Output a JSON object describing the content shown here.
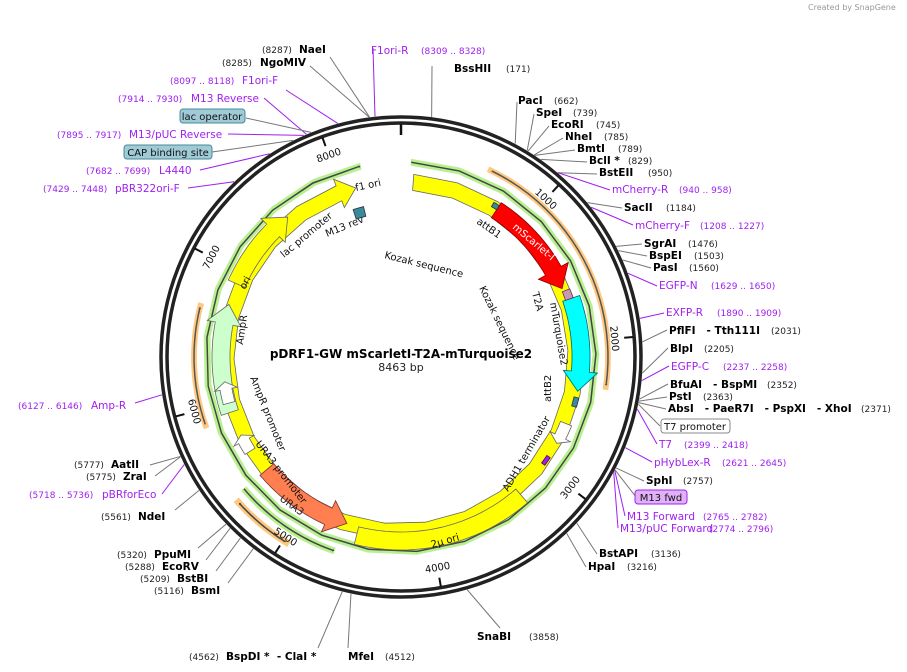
{
  "credit": "Created by SnapGene",
  "plasmid": {
    "name": "pDRF1-GW mScarletI-T2A-mTurquoise2",
    "length": "8463 bp",
    "total_bp": 8463
  },
  "ticks": [
    "1000",
    "2000",
    "3000",
    "4000",
    "5000",
    "6000",
    "7000",
    "8000"
  ],
  "colors": {
    "enzyme": "#000000",
    "primer": "#a020f0",
    "yellow": "#ffff00",
    "red": "#ff0000",
    "cyan": "#00ffff",
    "orange_feature": "#ff7f50",
    "ampr": "#ccffcc",
    "orange_arc": "#ffc880",
    "green_arc": "#a8f080"
  },
  "enzymes": [
    {
      "name": "NaeI",
      "pos": "(8287)"
    },
    {
      "name": "NgoMIV",
      "pos": "(8285)"
    },
    {
      "name": "BssHII",
      "pos": "(171)"
    },
    {
      "name": "PacI",
      "pos": "(662)"
    },
    {
      "name": "SpeI",
      "pos": "(739)"
    },
    {
      "name": "EcoRI",
      "pos": "(745)"
    },
    {
      "name": "NheI",
      "pos": "(785)"
    },
    {
      "name": "BmtI",
      "pos": "(789)"
    },
    {
      "name": "BclI *",
      "pos": "(829)"
    },
    {
      "name": "BstEII",
      "pos": "(950)"
    },
    {
      "name": "SacII",
      "pos": "(1184)"
    },
    {
      "name": "SgrAI",
      "pos": "(1476)"
    },
    {
      "name": "BspEI",
      "pos": "(1503)"
    },
    {
      "name": "PasI",
      "pos": "(1560)"
    },
    {
      "name": "PflFI   - Tth111I",
      "pos": "(2031)"
    },
    {
      "name": "BlpI",
      "pos": "(2205)"
    },
    {
      "name": "BfuAI   - BspMI",
      "pos": "(2352)"
    },
    {
      "name": "PstI",
      "pos": "(2363)"
    },
    {
      "name": "AbsI   - PaeR7I   - PspXI   - XhoI",
      "pos": "(2371)"
    },
    {
      "name": "SphI",
      "pos": "(2757)"
    },
    {
      "name": "BstAPI",
      "pos": "(3136)"
    },
    {
      "name": "HpaI",
      "pos": "(3216)"
    },
    {
      "name": "SnaBI",
      "pos": "(3858)"
    },
    {
      "name": "MfeI",
      "pos": "(4512)"
    },
    {
      "name": "BspDI *  - ClaI *",
      "pos": "(4562)"
    },
    {
      "name": "BsmI",
      "pos": "(5116)"
    },
    {
      "name": "BstBI",
      "pos": "(5209)"
    },
    {
      "name": "EcoRV",
      "pos": "(5288)"
    },
    {
      "name": "PpuMI",
      "pos": "(5320)"
    },
    {
      "name": "NdeI",
      "pos": "(5561)"
    },
    {
      "name": "ZraI",
      "pos": "(5775)"
    },
    {
      "name": "AatII",
      "pos": "(5777)"
    }
  ],
  "primers": [
    {
      "name": "F1ori-R",
      "range": "(8309 .. 8328)"
    },
    {
      "name": "F1ori-F",
      "range": "(8097 .. 8118)"
    },
    {
      "name": "M13 Reverse",
      "range": "(7914 .. 7930)"
    },
    {
      "name": "M13/pUC Reverse",
      "range": "(7895 .. 7917)"
    },
    {
      "name": "L4440",
      "range": "(7682 .. 7699)"
    },
    {
      "name": "pBR322ori-F",
      "range": "(7429 .. 7448)"
    },
    {
      "name": "mCherry-R",
      "range": "(940 .. 958)"
    },
    {
      "name": "mCherry-F",
      "range": "(1208 .. 1227)"
    },
    {
      "name": "EGFP-N",
      "range": "(1629 .. 1650)"
    },
    {
      "name": "EXFP-R",
      "range": "(1890 .. 1909)"
    },
    {
      "name": "EGFP-C",
      "range": "(2237 .. 2258)"
    },
    {
      "name": "T7",
      "range": "(2399 .. 2418)"
    },
    {
      "name": "pHybLex-R",
      "range": "(2621 .. 2645)"
    },
    {
      "name": "M13 Forward",
      "range": "(2765 .. 2782)"
    },
    {
      "name": "M13/pUC Forward",
      "range": "(2774 .. 2796)"
    },
    {
      "name": "Amp-R",
      "range": "(6127 .. 6146)"
    },
    {
      "name": "pBRforEco",
      "range": "(5718 .. 5736)"
    }
  ],
  "boxed_features": {
    "lac_operator": "lac operator",
    "cap": "CAP binding site",
    "t7_promoter": "T7 promoter",
    "m13_fwd": "M13 fwd"
  },
  "features": {
    "ori": "ori",
    "ampr": "AmpR",
    "lac_promoter": "lac promoter",
    "m13_rev": "M13 rev",
    "f1_ori": "f1 ori",
    "attb1": "attB1",
    "mscarlet": "mScarlet-I",
    "t2a": "T2A",
    "mturquoise": "mTurquoise2",
    "attb2": "attB2",
    "kozak1": "Kozak sequence",
    "kozak2": "Kozak sequence",
    "adh1": "ADH1 terminator",
    "two_micron": "2µ ori",
    "ura3": "URA3",
    "ura3_promoter": "URA3 promoter",
    "ampr_promoter": "AmpR promoter"
  }
}
